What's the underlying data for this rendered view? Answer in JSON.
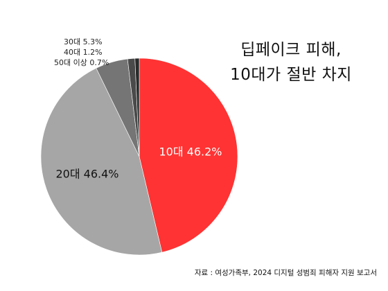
{
  "title": {
    "line1": "딥페이크 피해,",
    "line2": "10대가 절반 차지"
  },
  "chart_data": {
    "type": "pie",
    "slices": [
      {
        "label": "10대",
        "value": 46.2,
        "display": "10대 46.2%",
        "color": "#ff3333",
        "label_color": "#ffffff"
      },
      {
        "label": "20대",
        "value": 46.4,
        "display": "20대 46.4%",
        "color": "#a6a6a6",
        "label_color": "#111111"
      },
      {
        "label": "30대",
        "value": 5.3,
        "display": "30대 5.3%",
        "color": "#757575",
        "label_color": "#222222"
      },
      {
        "label": "40대",
        "value": 1.2,
        "display": "40대 1.2%",
        "color": "#4a4a4a",
        "label_color": "#222222"
      },
      {
        "label": "50대 이상",
        "value": 0.7,
        "display": "50대 이상 0.7%",
        "color": "#2a2a2a",
        "label_color": "#222222"
      }
    ]
  },
  "source": "자료 : 여성가족부, 2024 디지털 성범죄 피해자 지원 보고서"
}
